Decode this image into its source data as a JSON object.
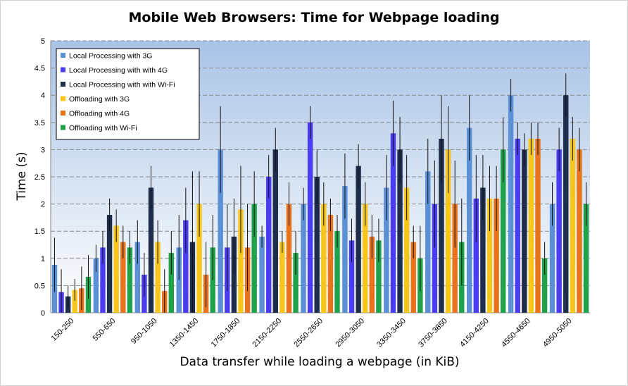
{
  "chart_data": {
    "type": "bar",
    "title": "Mobile Web Browsers: Time for Webpage loading",
    "xlabel": "Data transfer  while loading a webpage  (in KiB)",
    "ylabel": "Time (s)",
    "ylim": [
      0,
      5
    ],
    "yticks": [
      "0",
      "0.5",
      "1",
      "1.5",
      "2",
      "2.5",
      "3",
      "3.5",
      "4",
      "4.5",
      "5"
    ],
    "grid": true,
    "legend_position": "top-left",
    "categories": [
      "150-250",
      "550-650",
      "950-1050",
      "1350-1450",
      "1750-1850",
      "2150-2250",
      "2550-2650",
      "2950-3050",
      "3350-3450",
      "3750-3850",
      "4150-4250",
      "4550-4650",
      "4950-5050"
    ],
    "series": [
      {
        "name": "Local Processing with 3G",
        "color": "#5b8fd6",
        "values": [
          0.88,
          1.0,
          1.3,
          1.2,
          3.0,
          1.4,
          2.0,
          2.33,
          2.3,
          2.6,
          3.4,
          4.0,
          2.0
        ],
        "errors": [
          0.5,
          0.25,
          0.4,
          0.6,
          0.8,
          0.2,
          0.3,
          0.6,
          0.6,
          0.6,
          0.6,
          0.3,
          0.4
        ]
      },
      {
        "name": "Local Processing with with 4G",
        "color": "#4a3cf0",
        "values": [
          0.38,
          1.2,
          0.7,
          1.7,
          1.2,
          2.5,
          3.5,
          1.33,
          3.3,
          2.0,
          2.1,
          3.2,
          3.0
        ],
        "errors": [
          0.42,
          0.3,
          0.4,
          0.6,
          0.8,
          0.4,
          0.3,
          0.4,
          0.6,
          0.8,
          0.8,
          0.3,
          0.4
        ]
      },
      {
        "name": "Local Processing with with Wi-Fi",
        "color": "#1f2d4d",
        "values": [
          0.3,
          1.8,
          2.3,
          1.3,
          1.4,
          3.0,
          2.5,
          2.7,
          3.0,
          3.2,
          2.3,
          3.0,
          4.0
        ],
        "errors": [
          0.2,
          0.3,
          0.4,
          1.3,
          0.7,
          0.4,
          0.5,
          0.4,
          0.6,
          0.8,
          0.6,
          0.3,
          0.4
        ]
      },
      {
        "name": "Offloading with 3G",
        "color": "#f8c61a",
        "values": [
          0.42,
          1.6,
          1.3,
          2.0,
          1.9,
          1.3,
          2.0,
          2.0,
          2.3,
          3.0,
          2.1,
          3.2,
          3.2
        ],
        "errors": [
          0.2,
          0.3,
          0.4,
          0.6,
          0.8,
          0.2,
          0.4,
          0.4,
          0.6,
          0.8,
          0.6,
          0.3,
          0.4
        ]
      },
      {
        "name": "Offloading with 4G",
        "color": "#e8731a",
        "values": [
          0.45,
          1.3,
          0.4,
          0.7,
          1.2,
          2.0,
          1.8,
          1.4,
          1.3,
          2.0,
          2.1,
          3.2,
          3.0
        ],
        "errors": [
          0.4,
          0.3,
          0.4,
          0.6,
          0.8,
          0.4,
          0.3,
          0.4,
          0.3,
          0.8,
          0.6,
          0.3,
          0.4
        ]
      },
      {
        "name": "Offloading with Wi-Fi",
        "color": "#1fa24a",
        "values": [
          0.66,
          1.2,
          1.1,
          1.2,
          2.0,
          1.1,
          1.5,
          1.33,
          1.0,
          1.3,
          3.0,
          1.0,
          2.0
        ],
        "errors": [
          0.4,
          0.3,
          0.4,
          0.6,
          0.6,
          0.4,
          0.3,
          0.4,
          0.6,
          0.8,
          0.6,
          0.3,
          0.4
        ]
      }
    ]
  }
}
